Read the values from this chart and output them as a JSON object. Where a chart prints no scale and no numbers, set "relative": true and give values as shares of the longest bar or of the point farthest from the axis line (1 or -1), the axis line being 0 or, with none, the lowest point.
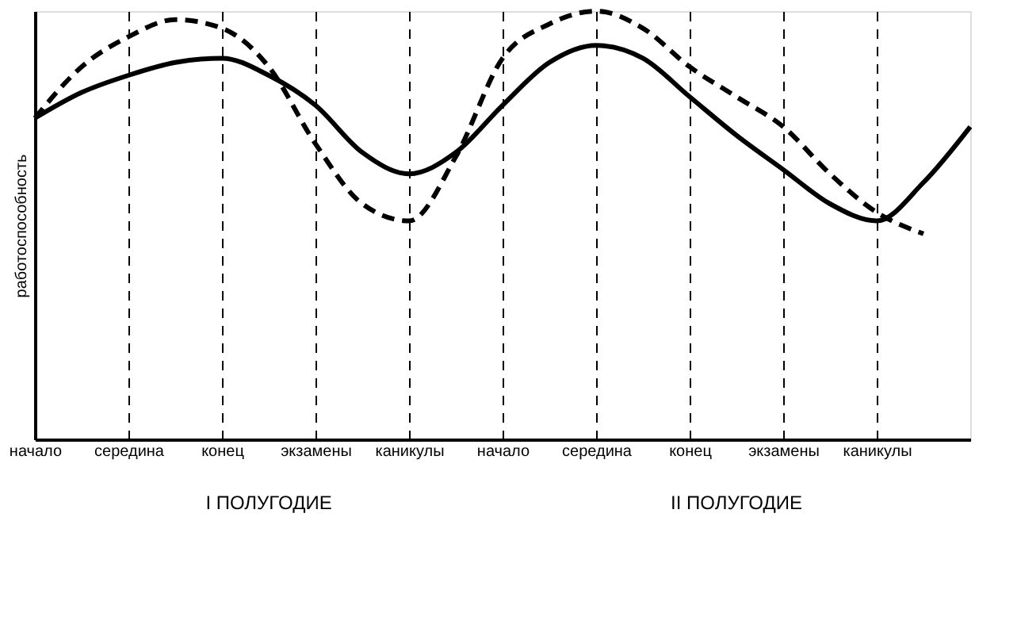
{
  "chart_data": {
    "type": "line",
    "relative": true,
    "ylabel": "работоспособность",
    "categories": [
      "начало",
      null,
      "середина",
      null,
      "конец",
      null,
      "экзамены",
      null,
      "каникулы",
      null,
      "начало",
      null,
      "середина",
      null,
      "конец",
      null,
      "экзамены",
      null,
      "каникулы",
      null,
      null
    ],
    "series": [
      {
        "color": "#000000",
        "line_style": "solid",
        "values": [
          0.75,
          0.81,
          0.85,
          0.88,
          0.89,
          0.85,
          0.78,
          0.67,
          0.62,
          0.67,
          0.78,
          0.88,
          0.92,
          0.89,
          0.8,
          0.71,
          0.63,
          0.55,
          0.51,
          0.6,
          0.73
        ]
      },
      {
        "color": "#000000",
        "line_style": "dashed",
        "values": [
          0.75,
          0.87,
          0.94,
          0.98,
          0.96,
          0.87,
          0.69,
          0.55,
          0.51,
          0.66,
          0.89,
          0.97,
          1.0,
          0.96,
          0.87,
          0.8,
          0.73,
          0.62,
          0.53,
          0.48,
          null
        ]
      }
    ],
    "grid": "x",
    "annotations": [
      "I ПОЛУГОДИЕ",
      "II ПОЛУГОДИЕ"
    ]
  }
}
